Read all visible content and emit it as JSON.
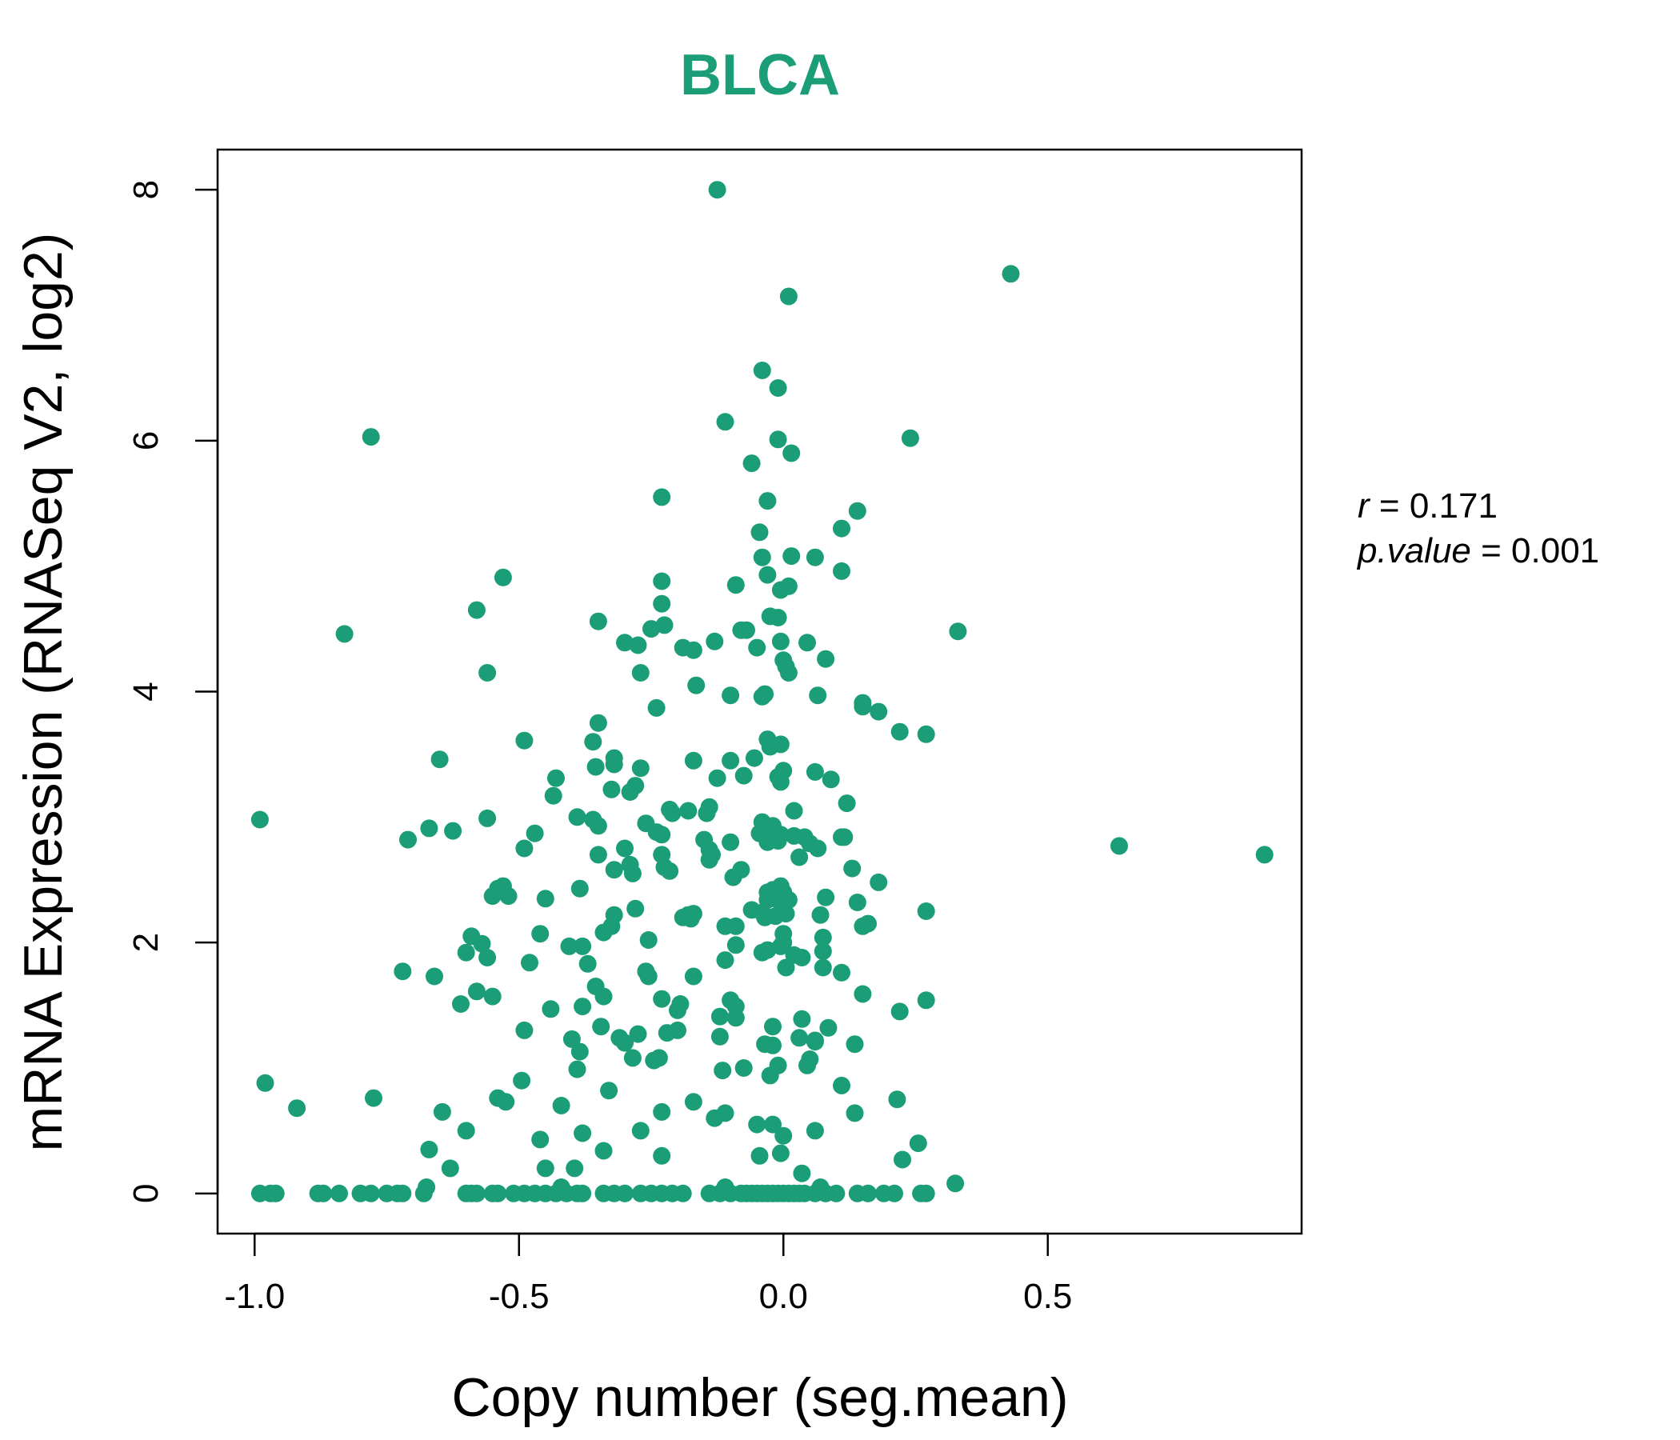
{
  "chart_data": {
    "type": "scatter",
    "title": "BLCA",
    "xlabel": "Copy number (seg.mean)",
    "ylabel": "mRNA Expression (RNASeq V2, log2)",
    "xlim": [
      -1.07,
      0.98
    ],
    "ylim": [
      -0.32,
      8.32
    ],
    "x_ticks": [
      -1.0,
      -0.5,
      0.0,
      0.5
    ],
    "x_tick_labels": [
      "-1.0",
      "-0.5",
      "0.0",
      "0.5"
    ],
    "y_ticks": [
      0,
      2,
      4,
      6,
      8
    ],
    "y_tick_labels": [
      "0",
      "2",
      "4",
      "6",
      "8"
    ],
    "grid": false,
    "legend": "none",
    "color": "#1b9e77",
    "stats": {
      "r_label": "r",
      "r_value": "0.171",
      "p_label": "p.value",
      "p_value": "0.001"
    },
    "points": [
      [
        -0.125,
        8.0
      ],
      [
        0.43,
        7.33
      ],
      [
        0.01,
        7.15
      ],
      [
        -0.04,
        6.56
      ],
      [
        -0.01,
        6.42
      ],
      [
        -0.11,
        6.15
      ],
      [
        -0.78,
        6.03
      ],
      [
        0.24,
        6.02
      ],
      [
        -0.01,
        6.01
      ],
      [
        0.015,
        5.9
      ],
      [
        -0.06,
        5.82
      ],
      [
        -0.23,
        5.55
      ],
      [
        -0.03,
        5.52
      ],
      [
        0.14,
        5.44
      ],
      [
        0.11,
        5.3
      ],
      [
        -0.045,
        5.27
      ],
      [
        -0.04,
        5.07
      ],
      [
        0.015,
        5.08
      ],
      [
        0.06,
        5.07
      ],
      [
        0.11,
        4.96
      ],
      [
        -0.53,
        4.91
      ],
      [
        -0.03,
        4.93
      ],
      [
        -0.23,
        4.88
      ],
      [
        0.01,
        4.84
      ],
      [
        -0.09,
        4.85
      ],
      [
        -0.005,
        4.81
      ],
      [
        -0.23,
        4.7
      ],
      [
        -0.58,
        4.65
      ],
      [
        -0.025,
        4.6
      ],
      [
        -0.01,
        4.59
      ],
      [
        -0.35,
        4.56
      ],
      [
        -0.25,
        4.5
      ],
      [
        -0.225,
        4.53
      ],
      [
        -0.08,
        4.49
      ],
      [
        -0.07,
        4.49
      ],
      [
        0.33,
        4.48
      ],
      [
        -0.83,
        4.46
      ],
      [
        -0.005,
        4.4
      ],
      [
        0.045,
        4.39
      ],
      [
        -0.3,
        4.39
      ],
      [
        -0.275,
        4.37
      ],
      [
        -0.13,
        4.4
      ],
      [
        -0.19,
        4.35
      ],
      [
        -0.17,
        4.33
      ],
      [
        -0.05,
        4.35
      ],
      [
        0.0,
        4.25
      ],
      [
        0.08,
        4.26
      ],
      [
        0.005,
        4.2
      ],
      [
        0.01,
        4.15
      ],
      [
        -0.56,
        4.15
      ],
      [
        -0.27,
        4.15
      ],
      [
        -0.165,
        4.05
      ],
      [
        -0.1,
        3.97
      ],
      [
        -0.035,
        3.98
      ],
      [
        -0.04,
        3.96
      ],
      [
        0.065,
        3.97
      ],
      [
        0.15,
        3.91
      ],
      [
        0.15,
        3.88
      ],
      [
        0.18,
        3.84
      ],
      [
        -0.24,
        3.87
      ],
      [
        -0.35,
        3.75
      ],
      [
        0.22,
        3.68
      ],
      [
        0.27,
        3.66
      ],
      [
        -0.49,
        3.61
      ],
      [
        -0.36,
        3.6
      ],
      [
        -0.03,
        3.62
      ],
      [
        -0.025,
        3.56
      ],
      [
        -0.005,
        3.58
      ],
      [
        -0.65,
        3.46
      ],
      [
        -0.17,
        3.45
      ],
      [
        -0.1,
        3.45
      ],
      [
        -0.055,
        3.47
      ],
      [
        -0.32,
        3.47
      ],
      [
        -0.32,
        3.42
      ],
      [
        -0.355,
        3.4
      ],
      [
        -0.27,
        3.39
      ],
      [
        0.0,
        3.37
      ],
      [
        0.06,
        3.36
      ],
      [
        -0.01,
        3.32
      ],
      [
        -0.43,
        3.31
      ],
      [
        -0.125,
        3.31
      ],
      [
        -0.075,
        3.33
      ],
      [
        0.09,
        3.3
      ],
      [
        -0.005,
        3.28
      ],
      [
        -0.28,
        3.25
      ],
      [
        -0.325,
        3.22
      ],
      [
        -0.29,
        3.2
      ],
      [
        -0.435,
        3.17
      ],
      [
        0.12,
        3.11
      ],
      [
        -0.14,
        3.08
      ],
      [
        -0.215,
        3.06
      ],
      [
        -0.145,
        3.03
      ],
      [
        -0.21,
        3.03
      ],
      [
        -0.18,
        3.05
      ],
      [
        0.02,
        3.05
      ],
      [
        -0.99,
        2.98
      ],
      [
        -0.56,
        2.99
      ],
      [
        -0.39,
        3.0
      ],
      [
        -0.36,
        2.98
      ],
      [
        -0.04,
        2.96
      ],
      [
        -0.26,
        2.95
      ],
      [
        -0.02,
        2.93
      ],
      [
        -0.35,
        2.93
      ],
      [
        -0.67,
        2.91
      ],
      [
        -0.625,
        2.89
      ],
      [
        -0.24,
        2.88
      ],
      [
        -0.47,
        2.87
      ],
      [
        -0.045,
        2.87
      ],
      [
        -0.23,
        2.86
      ],
      [
        -0.005,
        2.86
      ],
      [
        0.02,
        2.85
      ],
      [
        0.04,
        2.84
      ],
      [
        0.11,
        2.84
      ],
      [
        0.115,
        2.84
      ],
      [
        -0.15,
        2.82
      ],
      [
        -0.71,
        2.82
      ],
      [
        0.05,
        2.79
      ],
      [
        -0.03,
        2.8
      ],
      [
        -0.1,
        2.8
      ],
      [
        -0.01,
        2.81
      ],
      [
        0.635,
        2.77
      ],
      [
        -0.49,
        2.75
      ],
      [
        -0.3,
        2.75
      ],
      [
        -0.14,
        2.74
      ],
      [
        0.065,
        2.75
      ],
      [
        -0.35,
        2.7
      ],
      [
        0.91,
        2.7
      ],
      [
        -0.135,
        2.7
      ],
      [
        -0.23,
        2.7
      ],
      [
        0.03,
        2.68
      ],
      [
        -0.14,
        2.66
      ],
      [
        -0.29,
        2.62
      ],
      [
        -0.225,
        2.6
      ],
      [
        -0.32,
        2.58
      ],
      [
        -0.08,
        2.58
      ],
      [
        -0.215,
        2.57
      ],
      [
        0.13,
        2.59
      ],
      [
        -0.285,
        2.55
      ],
      [
        -0.095,
        2.52
      ],
      [
        0.18,
        2.48
      ],
      [
        -0.54,
        2.43
      ],
      [
        -0.53,
        2.45
      ],
      [
        -0.385,
        2.43
      ],
      [
        -0.02,
        2.42
      ],
      [
        -0.005,
        2.45
      ],
      [
        -0.03,
        2.4
      ],
      [
        0.0,
        2.4
      ],
      [
        -0.015,
        2.37
      ],
      [
        0.08,
        2.36
      ],
      [
        -0.45,
        2.35
      ],
      [
        -0.55,
        2.37
      ],
      [
        -0.52,
        2.37
      ],
      [
        -0.03,
        2.34
      ],
      [
        -0.01,
        2.34
      ],
      [
        0.01,
        2.34
      ],
      [
        0.14,
        2.32
      ],
      [
        -0.28,
        2.27
      ],
      [
        -0.06,
        2.26
      ],
      [
        -0.04,
        2.24
      ],
      [
        0.27,
        2.25
      ],
      [
        -0.32,
        2.22
      ],
      [
        -0.015,
        2.21
      ],
      [
        0.005,
        2.23
      ],
      [
        -0.17,
        2.23
      ],
      [
        -0.18,
        2.22
      ],
      [
        0.07,
        2.22
      ],
      [
        -0.035,
        2.2
      ],
      [
        -0.175,
        2.19
      ],
      [
        -0.19,
        2.2
      ],
      [
        0.16,
        2.15
      ],
      [
        0.15,
        2.13
      ],
      [
        -0.325,
        2.13
      ],
      [
        -0.09,
        2.13
      ],
      [
        -0.11,
        2.13
      ],
      [
        -0.34,
        2.08
      ],
      [
        -0.46,
        2.07
      ],
      [
        0.0,
        2.07
      ],
      [
        -0.59,
        2.05
      ],
      [
        0.075,
        2.04
      ],
      [
        -0.255,
        2.02
      ],
      [
        0.0,
        2.0
      ],
      [
        -0.57,
        1.99
      ],
      [
        -0.09,
        1.98
      ],
      [
        -0.38,
        1.97
      ],
      [
        -0.405,
        1.97
      ],
      [
        -0.005,
        1.97
      ],
      [
        0.075,
        1.93
      ],
      [
        -0.6,
        1.92
      ],
      [
        -0.04,
        1.92
      ],
      [
        -0.03,
        1.94
      ],
      [
        0.02,
        1.9
      ],
      [
        0.035,
        1.88
      ],
      [
        -0.56,
        1.88
      ],
      [
        -0.37,
        1.83
      ],
      [
        -0.48,
        1.84
      ],
      [
        -0.11,
        1.86
      ],
      [
        0.005,
        1.8
      ],
      [
        0.075,
        1.8
      ],
      [
        -0.72,
        1.77
      ],
      [
        -0.26,
        1.77
      ],
      [
        0.11,
        1.76
      ],
      [
        -0.255,
        1.73
      ],
      [
        -0.17,
        1.73
      ],
      [
        -0.66,
        1.73
      ],
      [
        -0.355,
        1.65
      ],
      [
        -0.58,
        1.61
      ],
      [
        -0.34,
        1.57
      ],
      [
        -0.55,
        1.57
      ],
      [
        0.15,
        1.59
      ],
      [
        0.27,
        1.54
      ],
      [
        -0.1,
        1.54
      ],
      [
        -0.23,
        1.55
      ],
      [
        -0.61,
        1.51
      ],
      [
        -0.195,
        1.51
      ],
      [
        -0.38,
        1.49
      ],
      [
        -0.09,
        1.49
      ],
      [
        -0.44,
        1.47
      ],
      [
        -0.2,
        1.46
      ],
      [
        0.22,
        1.45
      ],
      [
        -0.12,
        1.41
      ],
      [
        -0.09,
        1.4
      ],
      [
        0.035,
        1.39
      ],
      [
        -0.02,
        1.33
      ],
      [
        -0.345,
        1.33
      ],
      [
        0.085,
        1.32
      ],
      [
        -0.49,
        1.3
      ],
      [
        -0.2,
        1.3
      ],
      [
        -0.22,
        1.28
      ],
      [
        -0.275,
        1.27
      ],
      [
        -0.31,
        1.24
      ],
      [
        -0.12,
        1.25
      ],
      [
        0.03,
        1.24
      ],
      [
        0.06,
        1.21
      ],
      [
        -0.4,
        1.23
      ],
      [
        -0.3,
        1.2
      ],
      [
        0.06,
        1.22
      ],
      [
        -0.02,
        1.18
      ],
      [
        -0.035,
        1.19
      ],
      [
        0.135,
        1.19
      ],
      [
        -0.385,
        1.13
      ],
      [
        -0.235,
        1.08
      ],
      [
        -0.285,
        1.08
      ],
      [
        0.05,
        1.07
      ],
      [
        -0.245,
        1.06
      ],
      [
        0.045,
        1.02
      ],
      [
        -0.01,
        1.02
      ],
      [
        -0.075,
        1.0
      ],
      [
        -0.39,
        0.99
      ],
      [
        -0.115,
        0.98
      ],
      [
        -0.025,
        0.94
      ],
      [
        -0.98,
        0.88
      ],
      [
        -0.495,
        0.9
      ],
      [
        0.11,
        0.86
      ],
      [
        -0.33,
        0.82
      ],
      [
        -0.775,
        0.76
      ],
      [
        -0.54,
        0.76
      ],
      [
        -0.525,
        0.73
      ],
      [
        -0.17,
        0.73
      ],
      [
        0.215,
        0.75
      ],
      [
        -0.42,
        0.7
      ],
      [
        -0.92,
        0.68
      ],
      [
        -0.645,
        0.65
      ],
      [
        -0.23,
        0.65
      ],
      [
        -0.11,
        0.64
      ],
      [
        0.135,
        0.64
      ],
      [
        -0.13,
        0.6
      ],
      [
        -0.05,
        0.55
      ],
      [
        -0.02,
        0.55
      ],
      [
        -0.27,
        0.5
      ],
      [
        -0.6,
        0.5
      ],
      [
        -0.38,
        0.48
      ],
      [
        0.06,
        0.5
      ],
      [
        0.0,
        0.46
      ],
      [
        -0.46,
        0.43
      ],
      [
        0.255,
        0.4
      ],
      [
        -0.67,
        0.35
      ],
      [
        -0.34,
        0.34
      ],
      [
        -0.23,
        0.3
      ],
      [
        -0.045,
        0.3
      ],
      [
        -0.005,
        0.32
      ],
      [
        0.225,
        0.27
      ],
      [
        -0.63,
        0.2
      ],
      [
        -0.45,
        0.2
      ],
      [
        -0.395,
        0.2
      ],
      [
        0.035,
        0.16
      ],
      [
        0.325,
        0.08
      ],
      [
        -0.675,
        0.05
      ],
      [
        0.07,
        0.05
      ],
      [
        -0.42,
        0.05
      ],
      [
        -0.11,
        0.05
      ],
      [
        -0.99,
        0
      ],
      [
        -0.97,
        0
      ],
      [
        -0.96,
        0
      ],
      [
        -0.88,
        0
      ],
      [
        -0.87,
        0
      ],
      [
        -0.84,
        0
      ],
      [
        -0.8,
        0
      ],
      [
        -0.78,
        0
      ],
      [
        -0.75,
        0
      ],
      [
        -0.73,
        0
      ],
      [
        -0.72,
        0
      ],
      [
        -0.68,
        0
      ],
      [
        -0.6,
        0
      ],
      [
        -0.59,
        0
      ],
      [
        -0.58,
        0
      ],
      [
        -0.55,
        0
      ],
      [
        -0.54,
        0
      ],
      [
        -0.51,
        0
      ],
      [
        -0.49,
        0
      ],
      [
        -0.47,
        0
      ],
      [
        -0.45,
        0
      ],
      [
        -0.43,
        0
      ],
      [
        -0.41,
        0
      ],
      [
        -0.39,
        0
      ],
      [
        -0.38,
        0
      ],
      [
        -0.34,
        0
      ],
      [
        -0.32,
        0
      ],
      [
        -0.3,
        0
      ],
      [
        -0.27,
        0
      ],
      [
        -0.25,
        0
      ],
      [
        -0.23,
        0
      ],
      [
        -0.21,
        0
      ],
      [
        -0.19,
        0
      ],
      [
        -0.14,
        0
      ],
      [
        -0.12,
        0
      ],
      [
        -0.1,
        0
      ],
      [
        -0.08,
        0
      ],
      [
        -0.07,
        0
      ],
      [
        -0.06,
        0
      ],
      [
        -0.05,
        0
      ],
      [
        -0.04,
        0
      ],
      [
        -0.03,
        0
      ],
      [
        -0.02,
        0
      ],
      [
        -0.01,
        0
      ],
      [
        0.0,
        0
      ],
      [
        0.01,
        0
      ],
      [
        0.02,
        0
      ],
      [
        0.03,
        0
      ],
      [
        0.04,
        0
      ],
      [
        0.06,
        0
      ],
      [
        0.08,
        0
      ],
      [
        0.1,
        0
      ],
      [
        0.14,
        0
      ],
      [
        0.16,
        0
      ],
      [
        0.19,
        0
      ],
      [
        0.21,
        0
      ],
      [
        0.26,
        0
      ],
      [
        0.27,
        0
      ]
    ]
  }
}
